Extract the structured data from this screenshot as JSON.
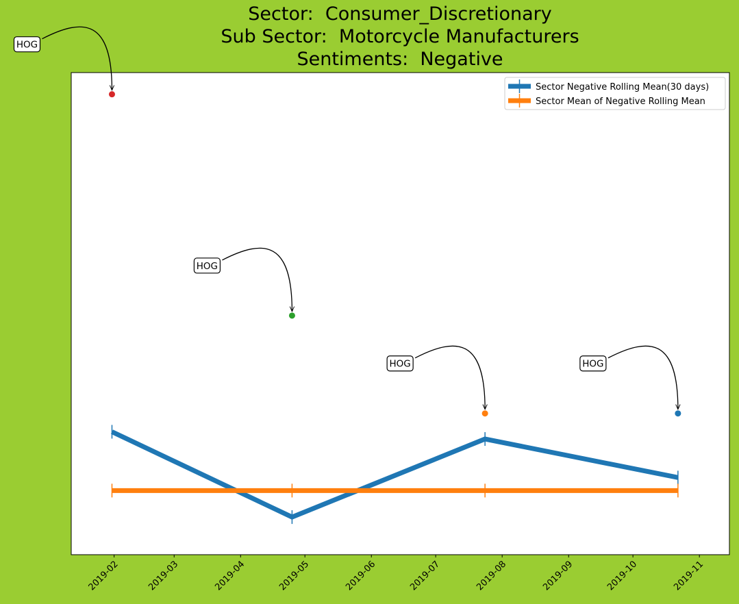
{
  "title": {
    "line1": "Sector:  Consumer_Discretionary",
    "line2": "Sub Sector:  Motorcycle Manufacturers",
    "line3": "Sentiments:  Negative"
  },
  "colors": {
    "background": "#9acd32",
    "rolling_mean": "#1f77b4",
    "mean_of_rolling": "#ff7f0e",
    "point_red": "#d62728",
    "point_green": "#2ca02c",
    "point_orange": "#ff7f0e",
    "point_blue": "#1f77b4"
  },
  "chart_data": {
    "type": "line",
    "title": "Sector:  Consumer_Discretionary\nSub Sector:  Motorcycle Manufacturers\nSentiments:  Negative",
    "xlabel": "",
    "ylabel": "",
    "x_axis": "date",
    "xlim": [
      "2019-01-12",
      "2019-11-15"
    ],
    "ylim": [
      0.0,
      1.0
    ],
    "y_ticks_shown": false,
    "x_ticks": [
      "2019-02",
      "2019-03",
      "2019-04",
      "2019-05",
      "2019-06",
      "2019-07",
      "2019-08",
      "2019-09",
      "2019-10",
      "2019-11"
    ],
    "grid": false,
    "legend_position": "top-right",
    "series": [
      {
        "name": "Sector Negative Rolling Mean(30 days)",
        "color": "#1f77b4",
        "x": [
          "2019-01-31",
          "2019-04-25",
          "2019-07-24",
          "2019-10-22"
        ],
        "y": [
          0.255,
          0.078,
          0.24,
          0.16
        ]
      },
      {
        "name": "Sector Mean of Negative Rolling Mean",
        "color": "#ff7f0e",
        "x": [
          "2019-01-31",
          "2019-04-25",
          "2019-07-24",
          "2019-10-22"
        ],
        "y": [
          0.133,
          0.133,
          0.133,
          0.133
        ]
      }
    ],
    "points": [
      {
        "x": "2019-01-31",
        "y": 0.955,
        "color": "#d62728",
        "label": "HOG"
      },
      {
        "x": "2019-04-25",
        "y": 0.496,
        "color": "#2ca02c",
        "label": "HOG"
      },
      {
        "x": "2019-07-24",
        "y": 0.293,
        "color": "#ff7f0e",
        "label": "HOG"
      },
      {
        "x": "2019-10-22",
        "y": 0.293,
        "color": "#1f77b4",
        "label": "HOG"
      }
    ]
  }
}
